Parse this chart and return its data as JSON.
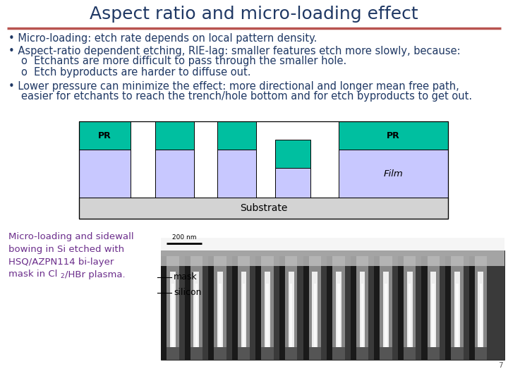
{
  "title": "Aspect ratio and micro-loading effect",
  "title_color": "#1F3864",
  "title_fontsize": 18,
  "background_color": "#FFFFFF",
  "separator_color": "#B85450",
  "bullet_color": "#1F3864",
  "bullet_fontsize": 10.5,
  "diagram": {
    "substrate_color": "#D3D3D3",
    "film_color": "#C8C8FF",
    "pr_color": "#00BFA0",
    "substrate_label": "Substrate",
    "film_label": "Film",
    "pr_label": "PR"
  },
  "sem_caption_color": "#6B2D8B",
  "sem_caption_lines": [
    "Micro-loading and sidewall",
    "bowing in Si etched with",
    "HSQ/AZPN114 bi-layer",
    "mask in Cl"
  ],
  "sem_caption_last_suffix": "/HBr plasma.",
  "sem_labels": [
    "mask",
    "silicon"
  ],
  "page_num": "7"
}
